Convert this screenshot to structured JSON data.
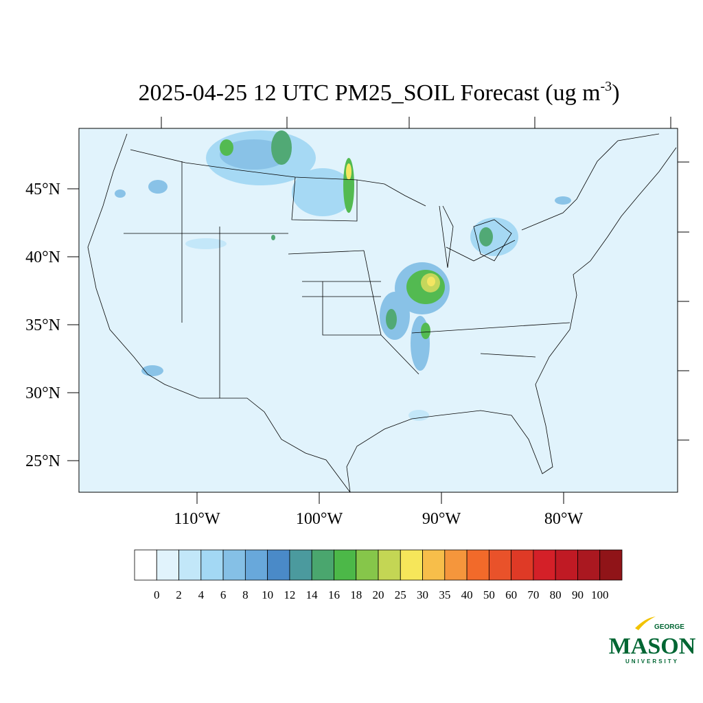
{
  "map": {
    "title": {
      "main": "2025-04-25 12 UTC PM25_SOIL Forecast (ug m",
      "superscript": "-3",
      "end": ")"
    },
    "lat_ticks": [
      {
        "value": 45,
        "label": "45°N"
      },
      {
        "value": 40,
        "label": "40°N"
      },
      {
        "value": 35,
        "label": "35°N"
      },
      {
        "value": 30,
        "label": "30°N"
      },
      {
        "value": 25,
        "label": "25°N"
      }
    ],
    "lon_ticks": [
      {
        "value": -110,
        "label": "110°W"
      },
      {
        "value": -100,
        "label": "100°W"
      },
      {
        "value": -90,
        "label": "90°W"
      },
      {
        "value": -80,
        "label": "80°W"
      }
    ],
    "colorbar": {
      "levels": [
        0,
        2,
        4,
        6,
        8,
        10,
        12,
        14,
        16,
        18,
        20,
        25,
        30,
        35,
        40,
        50,
        60,
        70,
        80,
        90,
        100
      ],
      "colors": [
        "#ffffff",
        "#e1f3fc",
        "#c2e7f9",
        "#a3d8f4",
        "#85c0e6",
        "#68a8db",
        "#4a8ac8",
        "#4b9a9e",
        "#4aa66e",
        "#4cb848",
        "#86c64a",
        "#c4d654",
        "#f6e65a",
        "#f7be4a",
        "#f5963c",
        "#f26a2a",
        "#e9522a",
        "#df3a26",
        "#d42028",
        "#c01a24",
        "#aa1820",
        "#901418"
      ]
    },
    "logo": {
      "top": "GEORGE",
      "main": "MASON",
      "bottom": "UNIVERSITY"
    }
  }
}
